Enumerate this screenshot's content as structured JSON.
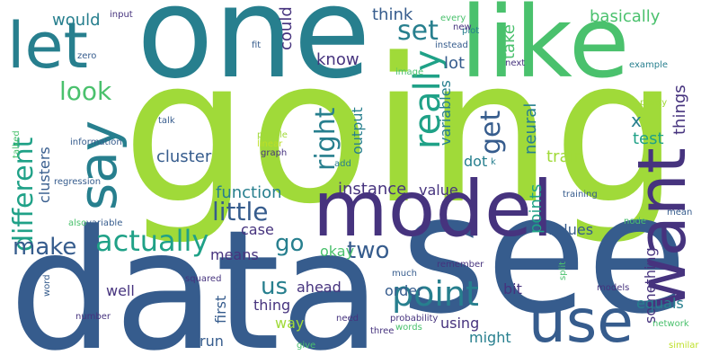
{
  "palette": {
    "dark_purple": "#46337e",
    "blue": "#365c8d",
    "teal_blue": "#277f8e",
    "teal": "#1fa187",
    "green": "#4ac16d",
    "lime": "#a0da39",
    "yellow_green": "#bddf26"
  },
  "words": {
    "going": "going",
    "data": "data",
    "one": "one",
    "see": "see",
    "like": "like",
    "model": "model",
    "want": "want",
    "use": "use",
    "let": "let",
    "say": "say",
    "point": "point",
    "actually": "actually",
    "really": "really",
    "different": "different",
    "right": "right",
    "look": "look",
    "set": "set",
    "get": "get",
    "little": "little",
    "make": "make",
    "two": "two",
    "go": "go",
    "us": "us",
    "instance": "instance",
    "function": "function",
    "cluster": "cluster",
    "would": "would",
    "could": "could",
    "think": "think",
    "basically": "basically",
    "know": "know",
    "lot": "lot",
    "take": "take",
    "things": "things",
    "x": "x",
    "test": "test",
    "train": "train",
    "points": "points",
    "neural": "neural",
    "variables": "variables",
    "output": "output",
    "dot": "dot",
    "value": "value",
    "values": "values",
    "clusters": "clusters",
    "case": "case",
    "means": "means",
    "okay": "okay",
    "ahead": "ahead",
    "well": "well",
    "first": "first",
    "time": "time",
    "thing": "thing",
    "way": "way",
    "run": "run",
    "order": "order",
    "bit": "bit",
    "something": "something",
    "using": "using",
    "might": "might",
    "equals": "equals",
    "input": "input",
    "every": "every",
    "plot": "plot",
    "instead": "instead",
    "fit": "fit",
    "zero": "zero",
    "image": "image",
    "next": "next",
    "new": "new",
    "example": "example",
    "pretty": "pretty",
    "talk": "talk",
    "people": "people",
    "linear": "linear",
    "graph": "graph",
    "information": "information",
    "talked": "talked",
    "add": "add",
    "k": "k",
    "regression": "regression",
    "training": "training",
    "also": "also",
    "variable": "variable",
    "node": "node",
    "mean": "mean",
    "squared": "squared",
    "remember": "remember",
    "much": "much",
    "split": "split",
    "models": "models",
    "word": "word",
    "number": "number",
    "need": "need",
    "probability": "probability",
    "words": "words",
    "network": "network",
    "three": "three",
    "give": "give",
    "similar": "similar"
  }
}
